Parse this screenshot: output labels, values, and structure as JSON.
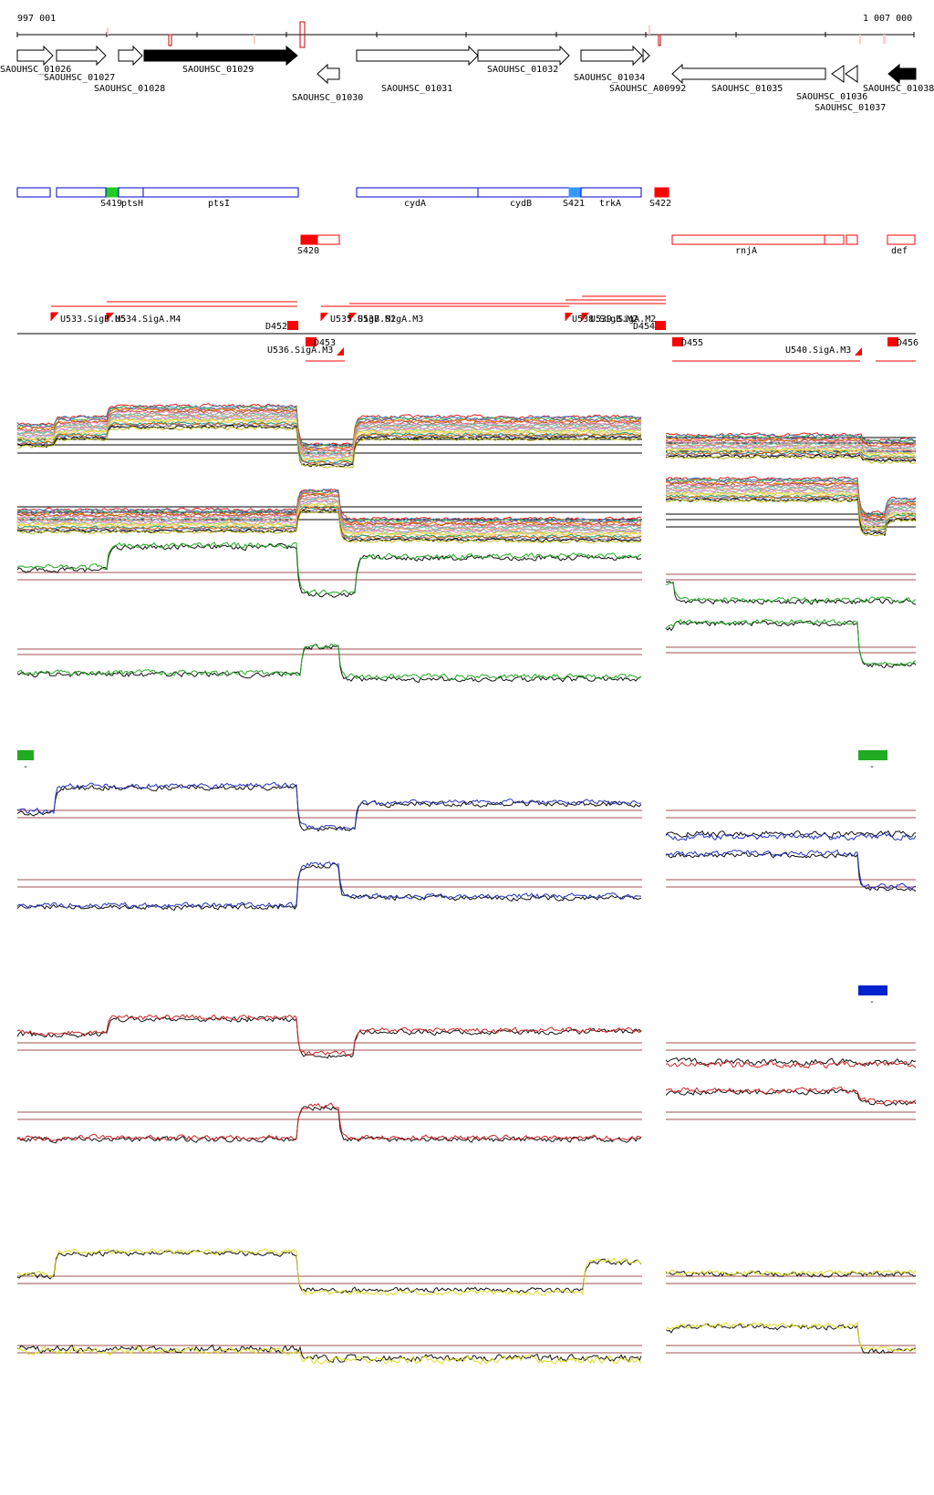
{
  "coordinates": {
    "start": "997 001",
    "end": "1 007 000"
  },
  "genes": [
    {
      "label": "SAOUHSC_01026",
      "strand": "+",
      "filled": false
    },
    {
      "label": "SAOUHSC_01027",
      "strand": "+",
      "filled": false
    },
    {
      "label": "SAOUHSC_01028",
      "strand": "+",
      "filled": false
    },
    {
      "label": "SAOUHSC_01029",
      "strand": "+",
      "filled": true
    },
    {
      "label": "SAOUHSC_01030",
      "strand": "-",
      "filled": false
    },
    {
      "label": "SAOUHSC_01031",
      "strand": "+",
      "filled": false
    },
    {
      "label": "SAOUHSC_01032",
      "strand": "+",
      "filled": false
    },
    {
      "label": "SAOUHSC_01034",
      "strand": "+",
      "filled": false
    },
    {
      "label": "SAOUHSC_A00992",
      "strand": "+",
      "filled": false
    },
    {
      "label": "SAOUHSC_01035",
      "strand": "-",
      "filled": false
    },
    {
      "label": "SAOUHSC_01036",
      "strand": "-",
      "filled": false
    },
    {
      "label": "SAOUHSC_01037",
      "strand": "-",
      "filled": false
    },
    {
      "label": "SAOUHSC_01038",
      "strand": "-",
      "filled": true
    }
  ],
  "plus_features": [
    {
      "label": "S419",
      "color": "#22cc22"
    },
    {
      "label": "ptsH",
      "color": "#0000cc"
    },
    {
      "label": "ptsI",
      "color": "#0000cc"
    },
    {
      "label": "cydA",
      "color": "#0000cc"
    },
    {
      "label": "cydB",
      "color": "#0000cc"
    },
    {
      "label": "S421",
      "color": "#3399ff"
    },
    {
      "label": "trkA",
      "color": "#0000cc"
    },
    {
      "label": "S422",
      "color": "#ff0000"
    }
  ],
  "minus_features": [
    {
      "label": "S420",
      "color": "#ff0000"
    },
    {
      "label": "rnjA",
      "color": "#ff0000"
    },
    {
      "label": "def",
      "color": "#ff0000"
    }
  ],
  "promoters_plus": [
    {
      "label": "U533.SigB.M5"
    },
    {
      "label": "U534.SigA.M4"
    },
    {
      "label": "U535.SigB.M2"
    },
    {
      "label": "U537.SigA.M3"
    },
    {
      "label": "U538.SigB.M2"
    },
    {
      "label": "U539.SigA.M2"
    }
  ],
  "terminators": [
    {
      "label": "D452"
    },
    {
      "label": "D453"
    },
    {
      "label": "D454"
    },
    {
      "label": "D455"
    },
    {
      "label": "D456"
    }
  ],
  "promoters_minus": [
    {
      "label": "U536.SigA.M3"
    },
    {
      "label": "U540.SigA.M3"
    }
  ],
  "track_colors": {
    "group1": "#22aa22",
    "group2": "#2233bb",
    "group3": "#cc2222",
    "group4": "#dddd22",
    "reference": "#111111"
  },
  "legend_markers": [
    {
      "color": "#22aa22",
      "text": "-"
    },
    {
      "color": "#22aa22",
      "text": "-"
    },
    {
      "color": "#0022cc",
      "text": "-"
    }
  ]
}
